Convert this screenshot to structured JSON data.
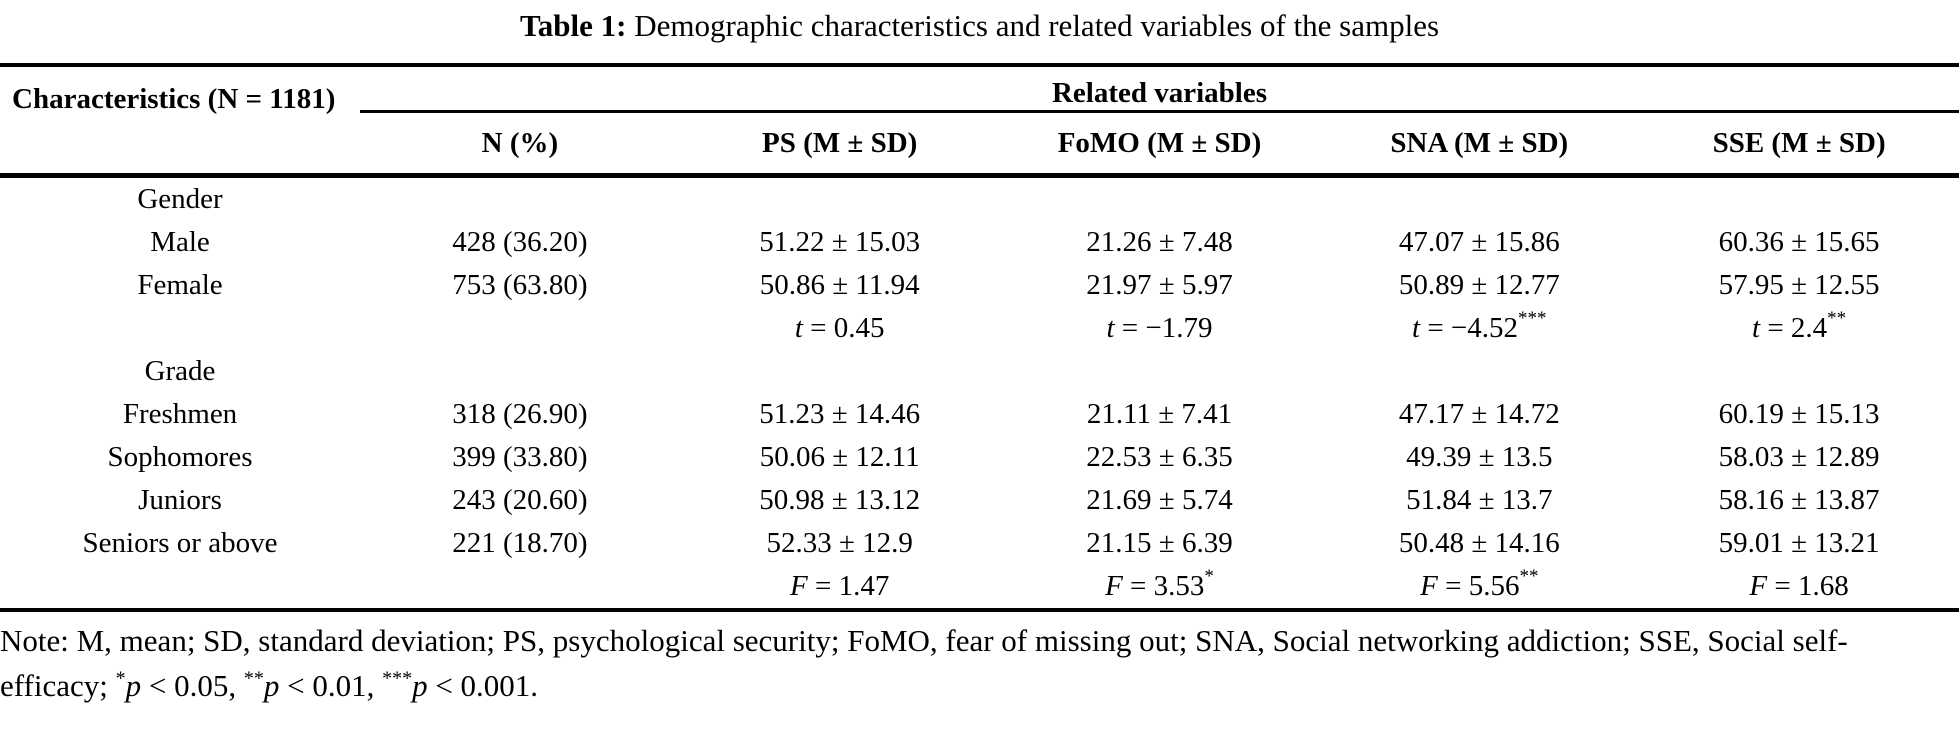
{
  "title": {
    "label": "Table 1:",
    "caption": " Demographic characteristics and related variables of the samples"
  },
  "table": {
    "characteristics_header": "Characteristics (N = 1181)",
    "related_variables_header": "Related variables",
    "columns": [
      "N (%)",
      "PS (M ± SD)",
      "FoMO (M ± SD)",
      "SNA (M ± SD)",
      "SSE (M ± SD)"
    ],
    "rows": [
      {
        "type": "group",
        "label": "Gender",
        "cells": [
          "",
          "",
          "",
          "",
          ""
        ]
      },
      {
        "type": "item",
        "label": "Male",
        "cells": [
          "428 (36.20)",
          "51.22 ± 15.03",
          "21.26 ± 7.48",
          "47.07 ± 15.86",
          "60.36 ± 15.65"
        ]
      },
      {
        "type": "item",
        "label": "Female",
        "cells": [
          "753 (63.80)",
          "50.86 ± 11.94",
          "21.97 ± 5.97",
          "50.89 ± 12.77",
          "57.95 ± 12.55"
        ]
      },
      {
        "type": "stat",
        "label": "",
        "cells": [
          "",
          {
            "stat": "t",
            "text": " = 0.45"
          },
          {
            "stat": "t",
            "text": " = −1.79"
          },
          {
            "stat": "t",
            "text": " = −4.52",
            "sup": "***"
          },
          {
            "stat": "t",
            "text": " = 2.4",
            "sup": "**"
          }
        ]
      },
      {
        "type": "group",
        "label": "Grade",
        "cells": [
          "",
          "",
          "",
          "",
          ""
        ]
      },
      {
        "type": "item",
        "label": "Freshmen",
        "cells": [
          "318 (26.90)",
          "51.23 ± 14.46",
          "21.11 ± 7.41",
          "47.17 ± 14.72",
          "60.19 ± 15.13"
        ]
      },
      {
        "type": "item",
        "label": "Sophomores",
        "cells": [
          "399 (33.80)",
          "50.06 ± 12.11",
          "22.53 ± 6.35",
          "49.39 ± 13.5",
          "58.03 ± 12.89"
        ]
      },
      {
        "type": "item",
        "label": "Juniors",
        "cells": [
          "243 (20.60)",
          "50.98 ± 13.12",
          "21.69 ± 5.74",
          "51.84 ± 13.7",
          "58.16 ± 13.87"
        ]
      },
      {
        "type": "item",
        "label": "Seniors or above",
        "cells": [
          "221 (18.70)",
          "52.33 ± 12.9",
          "21.15 ± 6.39",
          "50.48 ± 14.16",
          "59.01 ± 13.21"
        ]
      },
      {
        "type": "stat",
        "label": "",
        "cells": [
          "",
          {
            "stat": "F",
            "text": " = 1.47"
          },
          {
            "stat": "F",
            "text": " = 3.53",
            "sup": "*"
          },
          {
            "stat": "F",
            "text": " = 5.56",
            "sup": "**"
          },
          {
            "stat": "F",
            "text": " = 1.68"
          }
        ]
      }
    ]
  },
  "note": {
    "parts": [
      {
        "text": "Note: M, mean; SD, standard deviation; PS, psychological security; FoMO, fear of missing out; SNA, Social networking addiction; SSE, Social self-efficacy; "
      },
      {
        "sup": "*"
      },
      {
        "italic": "p"
      },
      {
        "text": " < 0.05, "
      },
      {
        "sup": "**"
      },
      {
        "italic": "p"
      },
      {
        "text": " < 0.01, "
      },
      {
        "sup": "***"
      },
      {
        "italic": "p"
      },
      {
        "text": " < 0.001."
      }
    ]
  },
  "colors": {
    "text": "#000000",
    "background": "#ffffff",
    "rule": "#000000"
  }
}
